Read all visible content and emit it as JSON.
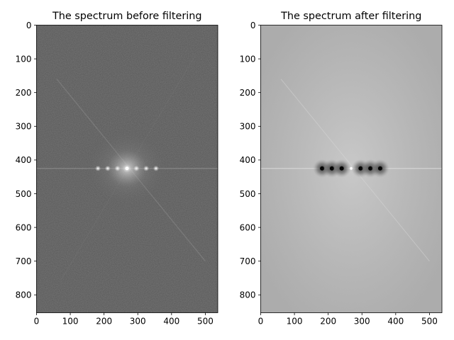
{
  "chart_data": [
    {
      "type": "heatmap",
      "title": "The spectrum before filtering",
      "xlabel": "",
      "ylabel": "",
      "image_width": 537,
      "image_height": 853,
      "xlim": [
        0,
        537
      ],
      "ylim": [
        853,
        0
      ],
      "x_ticks": [
        0,
        100,
        200,
        300,
        400,
        500
      ],
      "y_ticks": [
        0,
        100,
        200,
        300,
        400,
        500,
        600,
        700,
        800
      ],
      "colormap": "gray",
      "base_level": 0.34,
      "bright_center": [
        268,
        425
      ],
      "bright_spots": [
        {
          "x": 182,
          "y": 425
        },
        {
          "x": 211,
          "y": 425
        },
        {
          "x": 240,
          "y": 425
        },
        {
          "x": 296,
          "y": 425
        },
        {
          "x": 325,
          "y": 425
        },
        {
          "x": 354,
          "y": 425
        }
      ],
      "notches": []
    },
    {
      "type": "heatmap",
      "title": "The spectrum after filtering",
      "xlabel": "",
      "ylabel": "",
      "image_width": 537,
      "image_height": 853,
      "xlim": [
        0,
        537
      ],
      "ylim": [
        853,
        0
      ],
      "x_ticks": [
        0,
        100,
        200,
        300,
        400,
        500
      ],
      "y_ticks": [
        0,
        100,
        200,
        300,
        400,
        500,
        600,
        700,
        800
      ],
      "colormap": "gray",
      "base_level": 0.74,
      "bright_center": [
        268,
        425
      ],
      "bright_spots": [],
      "notches": [
        {
          "x": 182,
          "y": 425
        },
        {
          "x": 211,
          "y": 425
        },
        {
          "x": 240,
          "y": 425
        },
        {
          "x": 296,
          "y": 425
        },
        {
          "x": 325,
          "y": 425
        },
        {
          "x": 354,
          "y": 425
        }
      ]
    }
  ]
}
